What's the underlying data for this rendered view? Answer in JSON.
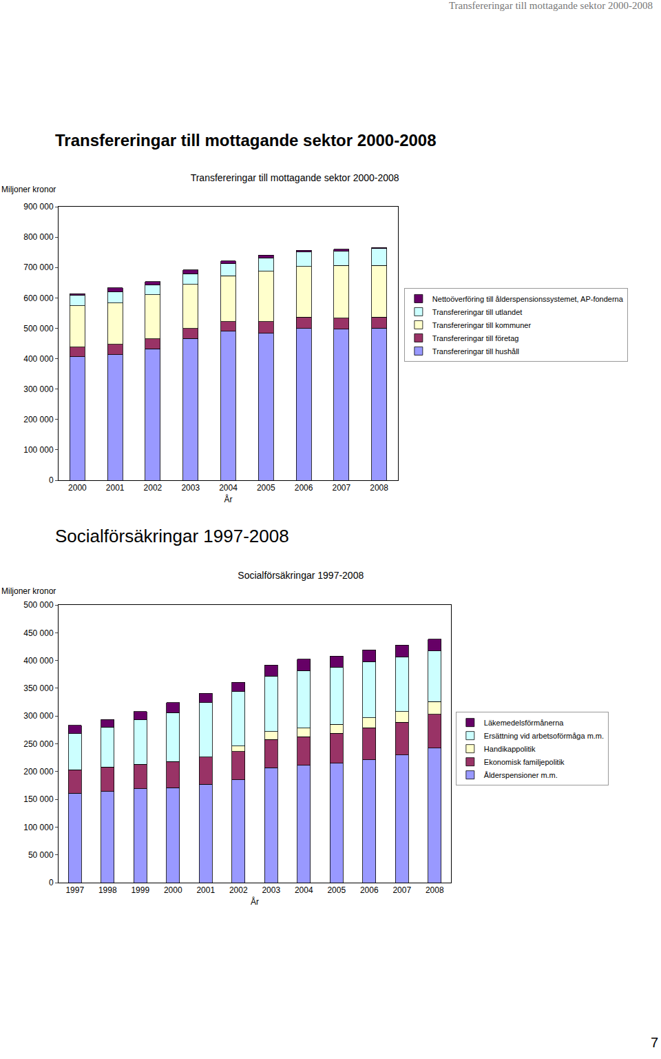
{
  "page": {
    "header": "Transfereringar till mottagande sektor 2000-2008",
    "number": "7"
  },
  "chart_data": [
    {
      "type": "bar",
      "stacked": true,
      "grid": false,
      "legend": "right",
      "heading": "Transfereringar till mottagande sektor 2000-2008",
      "title": "Transfereringar till mottagande sektor 2000-2008",
      "y_label": "Miljoner kronor",
      "x_label": "År",
      "categories": [
        "2000",
        "2001",
        "2002",
        "2003",
        "2004",
        "2005",
        "2006",
        "2007",
        "2008"
      ],
      "series": [
        {
          "name": "Transfereringar till hushåll",
          "color": "#9999ff",
          "values": [
            406000,
            413000,
            433000,
            467000,
            490000,
            483000,
            499000,
            497000,
            501000
          ]
        },
        {
          "name": "Transfereringar till företag",
          "color": "#993366",
          "values": [
            32000,
            34000,
            32000,
            32000,
            32000,
            39000,
            38000,
            36000,
            36000
          ]
        },
        {
          "name": "Transfereringar till kommuner",
          "color": "#ffffcc",
          "values": [
            136000,
            136000,
            145000,
            145000,
            151000,
            165000,
            166000,
            174000,
            170000
          ]
        },
        {
          "name": "Transfereringar till utlandet",
          "color": "#ccffff",
          "values": [
            34000,
            36000,
            32000,
            36000,
            39000,
            43000,
            48000,
            46000,
            55000
          ]
        },
        {
          "name": "Nettoöverföring till ålderspensionssystemet, AP-fonderna",
          "color": "#660066",
          "values": [
            6000,
            14000,
            11000,
            12000,
            9000,
            11000,
            6000,
            7000,
            4000
          ]
        }
      ],
      "ylim": [
        0,
        900000
      ],
      "yticks": [
        0,
        {
          "value": 100000,
          "label": "100 000"
        },
        {
          "value": 200000,
          "label": "200 000"
        },
        {
          "value": 300000,
          "label": "300 000"
        },
        {
          "value": 400000,
          "label": "400 000"
        },
        {
          "value": 500000,
          "label": "500 000"
        },
        {
          "value": 600000,
          "label": "600 000"
        },
        {
          "value": 700000,
          "label": "700 000"
        },
        {
          "value": 800000,
          "label": "800 000"
        },
        {
          "value": 900000,
          "label": "900 000"
        }
      ]
    },
    {
      "type": "bar",
      "stacked": true,
      "grid": false,
      "legend": "right",
      "heading": "Socialförsäkringar 1997-2008",
      "title": "Socialförsäkringar 1997-2008",
      "y_label": "Miljoner kronor",
      "x_label": "År",
      "categories": [
        "1997",
        "1998",
        "1999",
        "2000",
        "2001",
        "2002",
        "2003",
        "2004",
        "2005",
        "2006",
        "2007",
        "2008"
      ],
      "series": [
        {
          "name": "Ålderspensioner m.m.",
          "color": "#9999ff",
          "values": [
            161000,
            164000,
            169000,
            171000,
            177000,
            185000,
            207000,
            211000,
            215000,
            221000,
            230000,
            242000
          ]
        },
        {
          "name": "Ekonomisk familjepolitik",
          "color": "#993366",
          "values": [
            42000,
            44000,
            44000,
            47000,
            49000,
            51000,
            51000,
            52000,
            54000,
            58000,
            59000,
            61000
          ]
        },
        {
          "name": "Handikappolitik",
          "color": "#ffffcc",
          "values": [
            0,
            0,
            0,
            0,
            0,
            10000,
            14000,
            15000,
            16000,
            18000,
            19000,
            23000
          ]
        },
        {
          "name": "Ersättning vid arbetsoförmåga m.m.",
          "color": "#ccffff",
          "values": [
            65000,
            72000,
            80000,
            88000,
            98000,
            98000,
            100000,
            104000,
            103000,
            101000,
            98000,
            91000
          ]
        },
        {
          "name": "Läkemedelsförmånerna",
          "color": "#660066",
          "values": [
            15000,
            14000,
            15000,
            18000,
            17000,
            17000,
            20000,
            20000,
            20000,
            21000,
            22000,
            21000
          ]
        }
      ],
      "ylim": [
        0,
        500000
      ],
      "yticks": [
        0,
        {
          "value": 50000,
          "label": "50 000"
        },
        {
          "value": 100000,
          "label": "100 000"
        },
        {
          "value": 150000,
          "label": "150 000"
        },
        {
          "value": 200000,
          "label": "200 000"
        },
        {
          "value": 250000,
          "label": "250 000"
        },
        {
          "value": 300000,
          "label": "300 000"
        },
        {
          "value": 350000,
          "label": "350 000"
        },
        {
          "value": 400000,
          "label": "400 000"
        },
        {
          "value": 450000,
          "label": "450 000"
        },
        {
          "value": 500000,
          "label": "500 000"
        }
      ]
    }
  ]
}
